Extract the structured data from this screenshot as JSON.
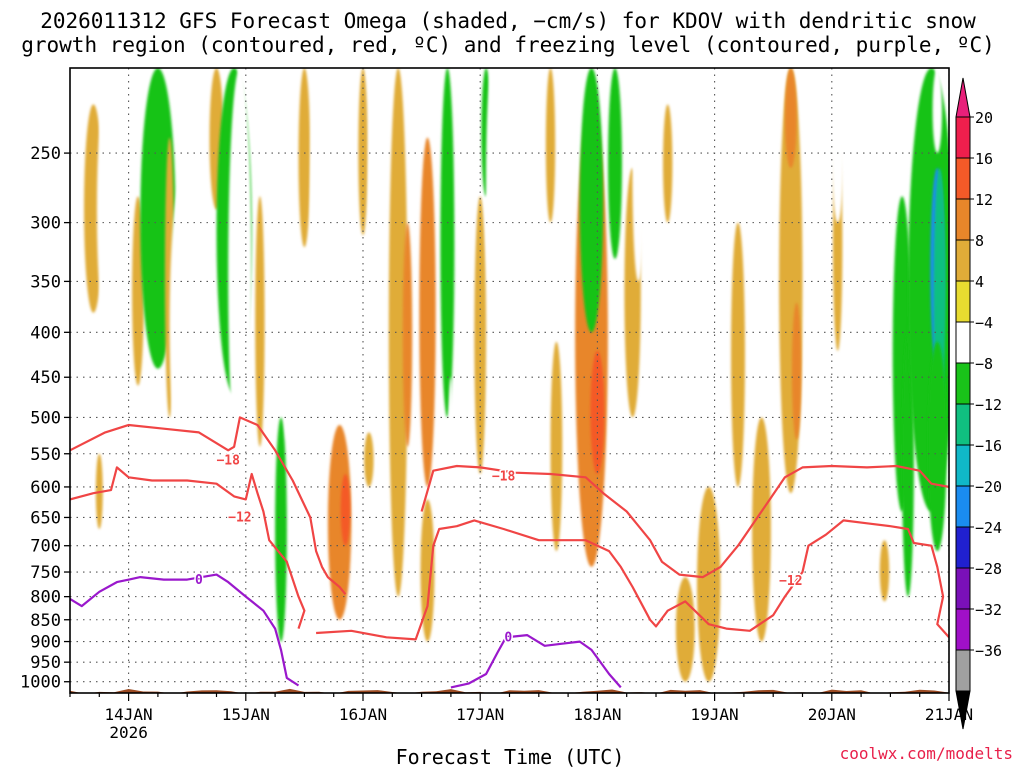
{
  "chart_data": {
    "type": "heatmap",
    "title_line1": "2026011312 GFS Forecast Omega (shaded, −cm/s) for KDOV with dendritic snow",
    "title_line2": "growth region (contoured, red, ºC) and freezing level (contoured, purple, ºC)",
    "xlabel": "Forecast Time (UTC)",
    "credit": "coolwx.com/modelts",
    "y_ticks": [
      250,
      300,
      350,
      400,
      450,
      500,
      550,
      600,
      650,
      700,
      750,
      800,
      850,
      900,
      950,
      1000
    ],
    "y_tick_labels": [
      "250",
      "300",
      "350",
      "400",
      "450",
      "500",
      "550",
      "600",
      "650",
      "700",
      "750",
      "800",
      "850",
      "900",
      "950",
      "1000"
    ],
    "ylim_hpa": [
      200,
      1030
    ],
    "x_ticks": [
      {
        "day": 14,
        "label": "14JAN",
        "sublabel": "2026"
      },
      {
        "day": 15,
        "label": "15JAN",
        "sublabel": ""
      },
      {
        "day": 16,
        "label": "16JAN",
        "sublabel": ""
      },
      {
        "day": 17,
        "label": "17JAN",
        "sublabel": ""
      },
      {
        "day": 18,
        "label": "18JAN",
        "sublabel": ""
      },
      {
        "day": 19,
        "label": "19JAN",
        "sublabel": ""
      },
      {
        "day": 20,
        "label": "20JAN",
        "sublabel": ""
      },
      {
        "day": 21,
        "label": "21JAN",
        "sublabel": ""
      }
    ],
    "xlim_days": [
      13.5,
      21.0
    ],
    "colorbar": {
      "levels": [
        20,
        16,
        12,
        8,
        4,
        -4,
        -8,
        -12,
        -16,
        -20,
        -24,
        -28,
        -32,
        -36
      ],
      "labels": [
        "20",
        "16",
        "12",
        "8",
        "4",
        "−4",
        "−8",
        "−12",
        "−16",
        "−20",
        "−24",
        "−28",
        "−32",
        "−36"
      ],
      "colors": [
        "#ef1f4d",
        "#f45a28",
        "#e8862a",
        "#e0ac38",
        "#e8dc30",
        "#ffffff",
        "#19c319",
        "#10c080",
        "#10b8c8",
        "#1a8cf0",
        "#2020d0",
        "#7a10b8",
        "#a010c8",
        "#a0a0a0"
      ],
      "top_color": "#e8207a",
      "bottom_color": "#000000"
    },
    "omega_blobs": [
      {
        "x": 13.7,
        "p": 300,
        "rx": 0.08,
        "rp": 80,
        "v": 6
      },
      {
        "x": 13.75,
        "p": 610,
        "rx": 0.03,
        "rp": 60,
        "v": 5
      },
      {
        "x": 13.85,
        "p": 280,
        "rx": 0.12,
        "rp": 140,
        "v": -7
      },
      {
        "x": 14.08,
        "p": 370,
        "rx": 0.05,
        "rp": 90,
        "v": 5
      },
      {
        "x": 14.12,
        "p": 760,
        "rx": 0.03,
        "rp": 50,
        "v": -6
      },
      {
        "x": 14.25,
        "p": 270,
        "rx": 0.15,
        "rp": 170,
        "v": -9
      },
      {
        "x": 14.35,
        "p": 370,
        "rx": 0.04,
        "rp": 130,
        "v": 5
      },
      {
        "x": 14.45,
        "p": 420,
        "rx": 0.1,
        "rp": 150,
        "v": -8
      },
      {
        "x": 14.6,
        "p": 230,
        "rx": 0.05,
        "rp": 100,
        "v": -6
      },
      {
        "x": 14.75,
        "p": 160,
        "rx": 0.06,
        "rp": 130,
        "v": 4.5
      },
      {
        "x": 14.9,
        "p": 220,
        "rx": 0.15,
        "rp": 250,
        "v": -11
      },
      {
        "x": 14.95,
        "p": 390,
        "rx": 0.1,
        "rp": 200,
        "v": -8
      },
      {
        "x": 15.15,
        "p": 220,
        "rx": 0.06,
        "rp": 120,
        "v": -7
      },
      {
        "x": 15.12,
        "p": 410,
        "rx": 0.04,
        "rp": 130,
        "v": 6
      },
      {
        "x": 15.3,
        "p": 700,
        "rx": 0.05,
        "rp": 200,
        "v": -9
      },
      {
        "x": 15.35,
        "p": 380,
        "rx": 0.03,
        "rp": 150,
        "v": -6
      },
      {
        "x": 15.5,
        "p": 200,
        "rx": 0.05,
        "rp": 120,
        "v": 4.5
      },
      {
        "x": 15.6,
        "p": 260,
        "rx": 0.05,
        "rp": 150,
        "v": -7
      },
      {
        "x": 15.75,
        "p": 470,
        "rx": 0.04,
        "rp": 80,
        "v": -6
      },
      {
        "x": 15.8,
        "p": 680,
        "rx": 0.1,
        "rp": 170,
        "v": 9
      },
      {
        "x": 15.85,
        "p": 640,
        "rx": 0.04,
        "rp": 60,
        "v": 12
      },
      {
        "x": 15.9,
        "p": 180,
        "rx": 0.04,
        "rp": 80,
        "v": -6
      },
      {
        "x": 16.0,
        "p": 250,
        "rx": 0.04,
        "rp": 60,
        "v": 5
      },
      {
        "x": 16.05,
        "p": 560,
        "rx": 0.04,
        "rp": 40,
        "v": 5
      },
      {
        "x": 16.1,
        "p": 220,
        "rx": 0.05,
        "rp": 130,
        "v": -7
      },
      {
        "x": 16.3,
        "p": 500,
        "rx": 0.08,
        "rp": 300,
        "v": 6
      },
      {
        "x": 16.38,
        "p": 420,
        "rx": 0.04,
        "rp": 120,
        "v": 9
      },
      {
        "x": 16.55,
        "p": 420,
        "rx": 0.07,
        "rp": 180,
        "v": 8
      },
      {
        "x": 16.55,
        "p": 760,
        "rx": 0.06,
        "rp": 140,
        "v": 5
      },
      {
        "x": 16.72,
        "p": 300,
        "rx": 0.06,
        "rp": 200,
        "v": -9
      },
      {
        "x": 16.75,
        "p": 650,
        "rx": 0.03,
        "rp": 200,
        "v": -6
      },
      {
        "x": 16.85,
        "p": 250,
        "rx": 0.05,
        "rp": 120,
        "v": -8
      },
      {
        "x": 17.0,
        "p": 430,
        "rx": 0.05,
        "rp": 150,
        "v": 6
      },
      {
        "x": 17.05,
        "p": 180,
        "rx": 0.04,
        "rp": 100,
        "v": -10
      },
      {
        "x": 17.1,
        "p": 270,
        "rx": 0.05,
        "rp": 100,
        "v": -6
      },
      {
        "x": 17.2,
        "p": 130,
        "rx": 0.05,
        "rp": 70,
        "v": 4.5
      },
      {
        "x": 17.3,
        "p": 230,
        "rx": 0.05,
        "rp": 130,
        "v": -8
      },
      {
        "x": 17.45,
        "p": 220,
        "rx": 0.05,
        "rp": 160,
        "v": -7
      },
      {
        "x": 17.65,
        "p": 560,
        "rx": 0.05,
        "rp": 150,
        "v": 5
      },
      {
        "x": 17.6,
        "p": 200,
        "rx": 0.04,
        "rp": 100,
        "v": 4.5
      },
      {
        "x": 17.95,
        "p": 480,
        "rx": 0.14,
        "rp": 260,
        "v": 10
      },
      {
        "x": 18.0,
        "p": 500,
        "rx": 0.06,
        "rp": 80,
        "v": 15
      },
      {
        "x": 17.95,
        "p": 250,
        "rx": 0.1,
        "rp": 150,
        "v": -10
      },
      {
        "x": 18.15,
        "p": 200,
        "rx": 0.06,
        "rp": 130,
        "v": -9
      },
      {
        "x": 18.3,
        "p": 380,
        "rx": 0.07,
        "rp": 120,
        "v": 5
      },
      {
        "x": 18.35,
        "p": 200,
        "rx": 0.05,
        "rp": 150,
        "v": -7
      },
      {
        "x": 18.5,
        "p": 380,
        "rx": 0.05,
        "rp": 130,
        "v": -7
      },
      {
        "x": 18.6,
        "p": 260,
        "rx": 0.04,
        "rp": 40,
        "v": 4.5
      },
      {
        "x": 18.75,
        "p": 880,
        "rx": 0.08,
        "rp": 120,
        "v": 6
      },
      {
        "x": 18.9,
        "p": 310,
        "rx": 0.04,
        "rp": 50,
        "v": -6
      },
      {
        "x": 18.95,
        "p": 800,
        "rx": 0.1,
        "rp": 200,
        "v": 6
      },
      {
        "x": 19.05,
        "p": 270,
        "rx": 0.04,
        "rp": 150,
        "v": -7
      },
      {
        "x": 19.2,
        "p": 450,
        "rx": 0.06,
        "rp": 150,
        "v": 5
      },
      {
        "x": 19.4,
        "p": 700,
        "rx": 0.08,
        "rp": 200,
        "v": 6
      },
      {
        "x": 19.35,
        "p": 400,
        "rx": 0.04,
        "rp": 100,
        "v": -6
      },
      {
        "x": 19.65,
        "p": 350,
        "rx": 0.1,
        "rp": 260,
        "v": 6
      },
      {
        "x": 19.65,
        "p": 170,
        "rx": 0.05,
        "rp": 90,
        "v": 8
      },
      {
        "x": 19.7,
        "p": 450,
        "rx": 0.04,
        "rp": 80,
        "v": 9
      },
      {
        "x": 20.0,
        "p": 400,
        "rx": 0.05,
        "rp": 180,
        "v": -7
      },
      {
        "x": 20.05,
        "p": 330,
        "rx": 0.04,
        "rp": 90,
        "v": 5
      },
      {
        "x": 20.05,
        "p": 200,
        "rx": 0.05,
        "rp": 100,
        "v": -6
      },
      {
        "x": 20.2,
        "p": 160,
        "rx": 0.04,
        "rp": 60,
        "v": -8
      },
      {
        "x": 20.35,
        "p": 650,
        "rx": 0.04,
        "rp": 60,
        "v": -6
      },
      {
        "x": 20.45,
        "p": 750,
        "rx": 0.04,
        "rp": 60,
        "v": 5
      },
      {
        "x": 20.6,
        "p": 460,
        "rx": 0.08,
        "rp": 180,
        "v": -9
      },
      {
        "x": 20.65,
        "p": 600,
        "rx": 0.05,
        "rp": 200,
        "v": -12
      },
      {
        "x": 20.75,
        "p": 250,
        "rx": 0.04,
        "rp": 80,
        "v": -6
      },
      {
        "x": 20.85,
        "p": 380,
        "rx": 0.2,
        "rp": 260,
        "v": -12
      },
      {
        "x": 20.9,
        "p": 350,
        "rx": 0.06,
        "rp": 90,
        "v": -24
      },
      {
        "x": 20.92,
        "p": 380,
        "rx": 0.05,
        "rp": 120,
        "v": -16
      },
      {
        "x": 20.9,
        "p": 560,
        "rx": 0.08,
        "rp": 150,
        "v": -9
      },
      {
        "x": 20.9,
        "p": 170,
        "rx": 0.04,
        "rp": 80,
        "v": -7
      }
    ],
    "contours": [
      {
        "name": "dgz-upper-west",
        "color": "#f04545",
        "label": "−18",
        "label_at": [
          14.85,
          558
        ],
        "points": [
          [
            13.5,
            545
          ],
          [
            13.8,
            520
          ],
          [
            14.0,
            510
          ],
          [
            14.3,
            515
          ],
          [
            14.6,
            520
          ],
          [
            14.85,
            545
          ],
          [
            14.9,
            540
          ],
          [
            14.95,
            500
          ],
          [
            15.1,
            510
          ],
          [
            15.25,
            545
          ],
          [
            15.4,
            590
          ],
          [
            15.55,
            650
          ],
          [
            15.6,
            710
          ],
          [
            15.65,
            740
          ],
          [
            15.7,
            760
          ],
          [
            15.8,
            780
          ],
          [
            15.85,
            795
          ]
        ]
      },
      {
        "name": "dgz-lower-west",
        "color": "#f04545",
        "label": "−12",
        "label_at": [
          14.95,
          648
        ],
        "points": [
          [
            13.5,
            620
          ],
          [
            13.7,
            610
          ],
          [
            13.85,
            605
          ],
          [
            13.9,
            570
          ],
          [
            14.0,
            585
          ],
          [
            14.2,
            590
          ],
          [
            14.5,
            590
          ],
          [
            14.75,
            595
          ],
          [
            14.9,
            615
          ],
          [
            15.0,
            620
          ],
          [
            15.05,
            580
          ],
          [
            15.1,
            610
          ],
          [
            15.15,
            640
          ],
          [
            15.2,
            690
          ],
          [
            15.35,
            730
          ],
          [
            15.45,
            800
          ],
          [
            15.5,
            830
          ],
          [
            15.45,
            870
          ]
        ]
      },
      {
        "name": "dgz-mid-upper",
        "color": "#f04545",
        "label": "−18",
        "label_at": [
          17.2,
          582
        ],
        "points": [
          [
            16.5,
            640
          ],
          [
            16.6,
            575
          ],
          [
            16.8,
            568
          ],
          [
            17.0,
            570
          ],
          [
            17.3,
            578
          ],
          [
            17.6,
            580
          ],
          [
            17.9,
            585
          ],
          [
            18.05,
            610
          ],
          [
            18.25,
            640
          ],
          [
            18.45,
            690
          ],
          [
            18.55,
            730
          ],
          [
            18.7,
            755
          ],
          [
            18.9,
            760
          ],
          [
            19.05,
            740
          ],
          [
            19.2,
            700
          ],
          [
            19.4,
            640
          ],
          [
            19.6,
            585
          ],
          [
            19.75,
            570
          ],
          [
            20.0,
            568
          ],
          [
            20.3,
            570
          ],
          [
            20.55,
            568
          ],
          [
            20.75,
            575
          ],
          [
            20.85,
            595
          ],
          [
            21.0,
            600
          ]
        ]
      },
      {
        "name": "dgz-mid-lower",
        "color": "#f04545",
        "label": "−12",
        "label_at": [
          19.65,
          766
        ],
        "points": [
          [
            15.6,
            880
          ],
          [
            15.9,
            875
          ],
          [
            16.2,
            890
          ],
          [
            16.45,
            895
          ],
          [
            16.55,
            820
          ],
          [
            16.6,
            700
          ],
          [
            16.65,
            670
          ],
          [
            16.8,
            665
          ],
          [
            16.95,
            655
          ],
          [
            17.2,
            670
          ],
          [
            17.5,
            690
          ],
          [
            17.7,
            690
          ],
          [
            17.9,
            690
          ],
          [
            18.1,
            710
          ],
          [
            18.2,
            740
          ],
          [
            18.3,
            780
          ],
          [
            18.45,
            850
          ],
          [
            18.5,
            865
          ],
          [
            18.6,
            830
          ],
          [
            18.75,
            810
          ],
          [
            18.95,
            860
          ],
          [
            19.1,
            870
          ],
          [
            19.3,
            875
          ],
          [
            19.5,
            840
          ],
          [
            19.6,
            800
          ],
          [
            19.75,
            750
          ],
          [
            19.8,
            700
          ],
          [
            19.95,
            680
          ],
          [
            20.1,
            655
          ],
          [
            20.3,
            660
          ],
          [
            20.5,
            665
          ],
          [
            20.65,
            670
          ],
          [
            20.7,
            695
          ],
          [
            20.85,
            700
          ],
          [
            20.9,
            740
          ],
          [
            20.95,
            800
          ],
          [
            20.9,
            860
          ],
          [
            21.0,
            890
          ]
        ]
      },
      {
        "name": "freezing-level-west",
        "color": "#9a18cc",
        "label": "0",
        "label_at": [
          14.6,
          764
        ],
        "points": [
          [
            13.5,
            805
          ],
          [
            13.6,
            820
          ],
          [
            13.75,
            790
          ],
          [
            13.9,
            770
          ],
          [
            14.1,
            760
          ],
          [
            14.3,
            765
          ],
          [
            14.5,
            765
          ],
          [
            14.75,
            755
          ],
          [
            14.85,
            770
          ],
          [
            15.0,
            800
          ],
          [
            15.15,
            830
          ],
          [
            15.25,
            870
          ],
          [
            15.3,
            920
          ],
          [
            15.35,
            990
          ],
          [
            15.45,
            1010
          ]
        ]
      },
      {
        "name": "freezing-level-mid",
        "color": "#9a18cc",
        "label": "0",
        "label_at": [
          17.24,
          888
        ],
        "points": [
          [
            16.75,
            1015
          ],
          [
            16.9,
            1005
          ],
          [
            17.05,
            980
          ],
          [
            17.15,
            925
          ],
          [
            17.22,
            890
          ],
          [
            17.4,
            885
          ],
          [
            17.55,
            910
          ],
          [
            17.7,
            905
          ],
          [
            17.85,
            900
          ],
          [
            17.95,
            920
          ],
          [
            18.1,
            980
          ],
          [
            18.2,
            1015
          ]
        ]
      }
    ]
  }
}
